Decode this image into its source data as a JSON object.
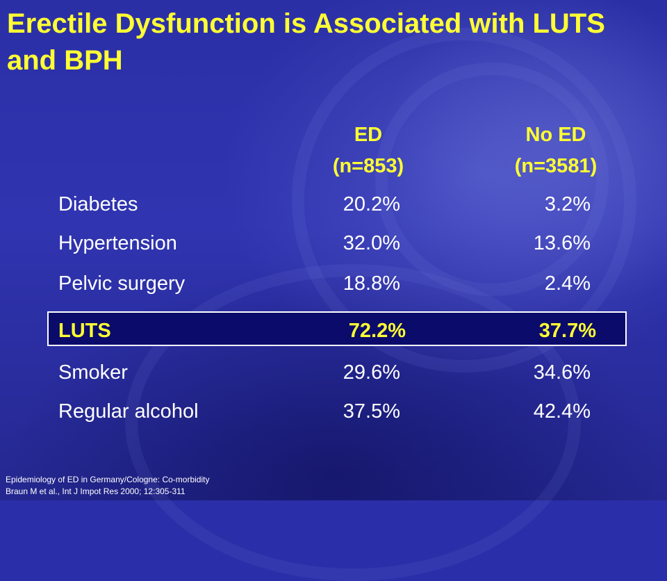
{
  "title": "Erectile Dysfunction is Associated  with LUTS and BPH",
  "columns": [
    {
      "name": "ED",
      "n": "(n=853)"
    },
    {
      "name": "No ED",
      "n": "(n=3581)"
    }
  ],
  "rows": [
    {
      "label": "Diabetes",
      "ed": "20.2%",
      "no_ed": "3.2%"
    },
    {
      "label": "Hypertension",
      "ed": "32.0%",
      "no_ed": "13.6%"
    },
    {
      "label": "Pelvic  surgery",
      "ed": "18.8%",
      "no_ed": "2.4%"
    },
    {
      "label": "LUTS",
      "ed": "72.2%",
      "no_ed": "37.7%"
    },
    {
      "label": "Smoker",
      "ed": "29.6%",
      "no_ed": "34.6%"
    },
    {
      "label": "Regular alcohol",
      "ed": "37.5%",
      "no_ed": "42.4%"
    }
  ],
  "footnote": {
    "line1": "Epidemiology  of  ED  in Germany/Cologne:  Co-morbidity",
    "line2": "Braun M et al., Int J Impot Res 2000; 12:305-311"
  },
  "colors": {
    "title": "#ffff33",
    "text": "#ffffff",
    "background": "#2a2ea8",
    "highlight_bg": "#0b0b6b"
  }
}
